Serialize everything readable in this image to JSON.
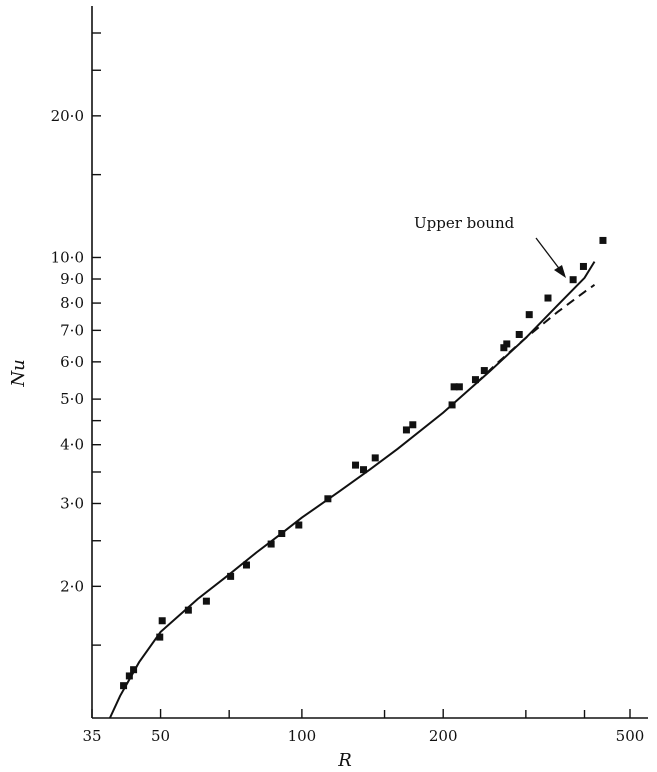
{
  "chart_data": {
    "type": "scatter",
    "x_scale": "log",
    "y_scale": "log",
    "xlabel": "R",
    "ylabel": "Nu",
    "xlim": [
      35,
      500
    ],
    "ylim": [
      1.05,
      33
    ],
    "x_tick_labels": [
      {
        "value": 35,
        "label": "35"
      },
      {
        "value": 50,
        "label": "50"
      },
      {
        "value": 100,
        "label": "100"
      },
      {
        "value": 200,
        "label": "200"
      },
      {
        "value": 500,
        "label": "500"
      }
    ],
    "x_minor_ticks": [
      70,
      150,
      300,
      400
    ],
    "y_tick_labels": [
      {
        "value": 2,
        "label": "2·0"
      },
      {
        "value": 3,
        "label": "3·0"
      },
      {
        "value": 4,
        "label": "4·0"
      },
      {
        "value": 5,
        "label": "5·0"
      },
      {
        "value": 6,
        "label": "6·0"
      },
      {
        "value": 7,
        "label": "7·0"
      },
      {
        "value": 8,
        "label": "8·0"
      },
      {
        "value": 9,
        "label": "9·0"
      },
      {
        "value": 10,
        "label": "10·0"
      },
      {
        "value": 20,
        "label": "20·0"
      }
    ],
    "y_minor_ticks": [
      1.5,
      2.5,
      3.5,
      4.5,
      15,
      25,
      30
    ],
    "grid": false,
    "series": [
      {
        "style": "points",
        "x": [
          41.7,
          42.9,
          43.8,
          49.8,
          50.4,
          57.3,
          62.6,
          70.5,
          76.2,
          86.0,
          90.6,
          98.5,
          113.6,
          130.1,
          135.3,
          143.3,
          167.0,
          172.3,
          208.9,
          211.0,
          216.5,
          234.3,
          244.7,
          269.3,
          273.2,
          290.4,
          305.0,
          334.4,
          378.3,
          397.9,
          437.9
        ],
        "y": [
          1.23,
          1.29,
          1.33,
          1.56,
          1.69,
          1.78,
          1.86,
          2.1,
          2.22,
          2.46,
          2.59,
          2.7,
          3.07,
          3.62,
          3.54,
          3.75,
          4.3,
          4.41,
          4.86,
          5.31,
          5.31,
          5.5,
          5.75,
          6.43,
          6.55,
          6.86,
          7.56,
          8.2,
          8.97,
          9.57,
          10.87
        ]
      },
      {
        "style": "solid",
        "x": [
          39,
          41,
          45,
          50,
          60,
          70,
          80,
          90,
          100,
          120,
          140,
          160,
          200,
          250,
          300,
          350,
          400,
          420
        ],
        "y": [
          1.05,
          1.17,
          1.38,
          1.6,
          1.88,
          2.12,
          2.36,
          2.58,
          2.8,
          3.18,
          3.55,
          3.92,
          4.68,
          5.7,
          6.75,
          7.9,
          9.05,
          9.8
        ]
      },
      {
        "style": "dashed",
        "x": [
          235,
          260,
          300,
          350,
          400,
          420
        ],
        "y": [
          5.4,
          5.95,
          6.75,
          7.65,
          8.45,
          8.75
        ]
      }
    ],
    "annotations": [
      {
        "text": "Upper bound",
        "x": 350,
        "y": 8.05
      }
    ]
  }
}
